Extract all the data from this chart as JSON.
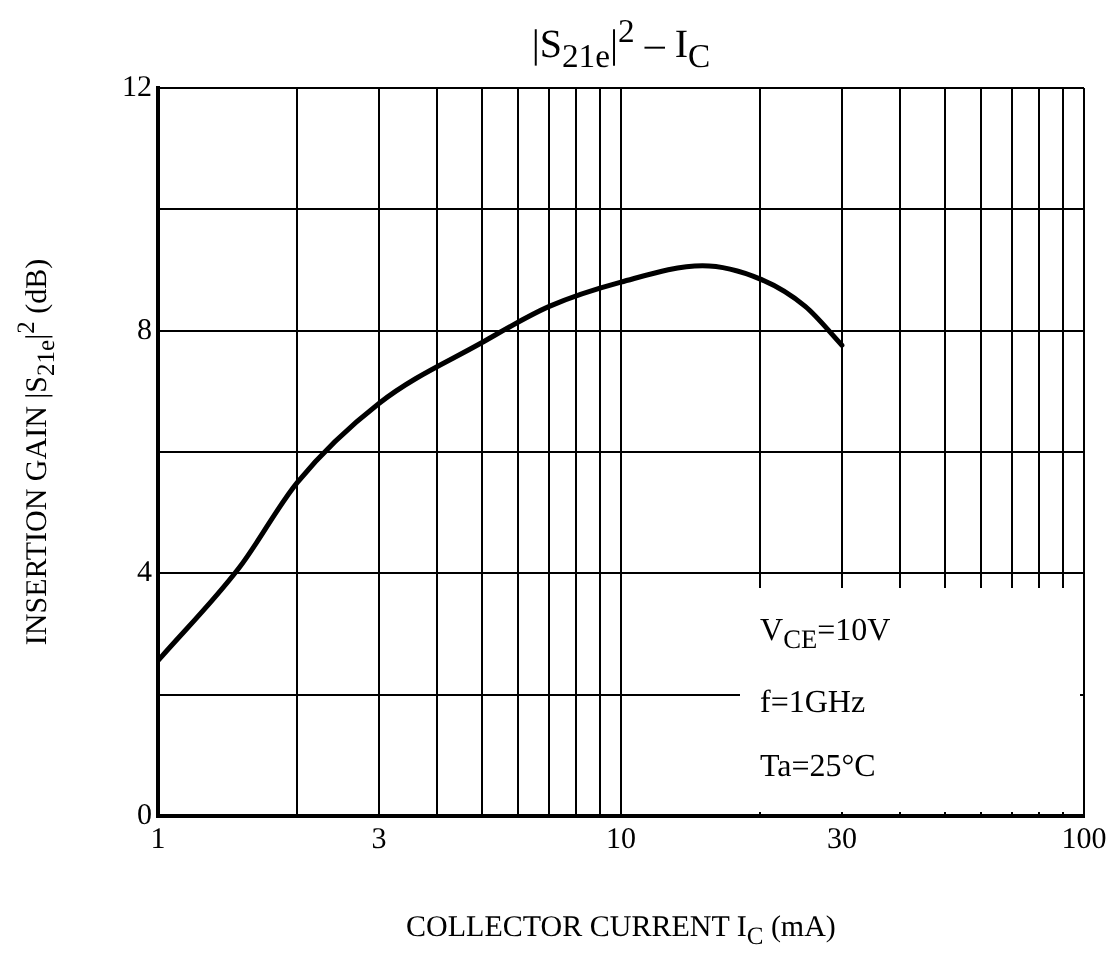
{
  "chart_data": {
    "type": "line",
    "title": "|S$_{21e}$|$^{2}$ – I$_{C}$",
    "xlabel": "COLLECTOR CURRENT  I$_{C}$  (mA)",
    "ylabel": "INSERTION GAIN  |S$_{21e}$|$^{2}$  (dB)",
    "log": "x",
    "x": [
      1,
      1.5,
      2,
      3,
      5,
      7,
      10,
      15,
      20,
      25,
      30
    ],
    "series": [
      {
        "color": "#000000",
        "values": [
          2.56,
          4.1,
          5.5,
          6.8,
          7.8,
          8.4,
          8.8,
          9.07,
          8.85,
          8.4,
          7.76
        ]
      }
    ],
    "xlim": [
      1,
      100
    ],
    "xticks": [
      1,
      {
        "value": 2,
        "label": null
      },
      3,
      {
        "value": 4,
        "label": null
      },
      {
        "value": 5,
        "label": null
      },
      {
        "value": 6,
        "label": null
      },
      {
        "value": 7,
        "label": null
      },
      {
        "value": 8,
        "label": null
      },
      {
        "value": 9,
        "label": null
      },
      10,
      {
        "value": 20,
        "label": null
      },
      30,
      {
        "value": 40,
        "label": null
      },
      {
        "value": 50,
        "label": null
      },
      {
        "value": 60,
        "label": null
      },
      {
        "value": 70,
        "label": null
      },
      {
        "value": 80,
        "label": null
      },
      {
        "value": 90,
        "label": null
      },
      100
    ],
    "ylim": [
      0,
      12
    ],
    "yticks": [
      0,
      {
        "value": 2,
        "label": null
      },
      4,
      {
        "value": 6,
        "label": null
      },
      8,
      {
        "value": 10,
        "label": null
      },
      12
    ],
    "grid": true,
    "legend": false,
    "marker": "none",
    "line_style": "solid",
    "annotations": [
      "V$_{CE}$=10V",
      "f=1GHz",
      "Ta=25°C"
    ]
  }
}
